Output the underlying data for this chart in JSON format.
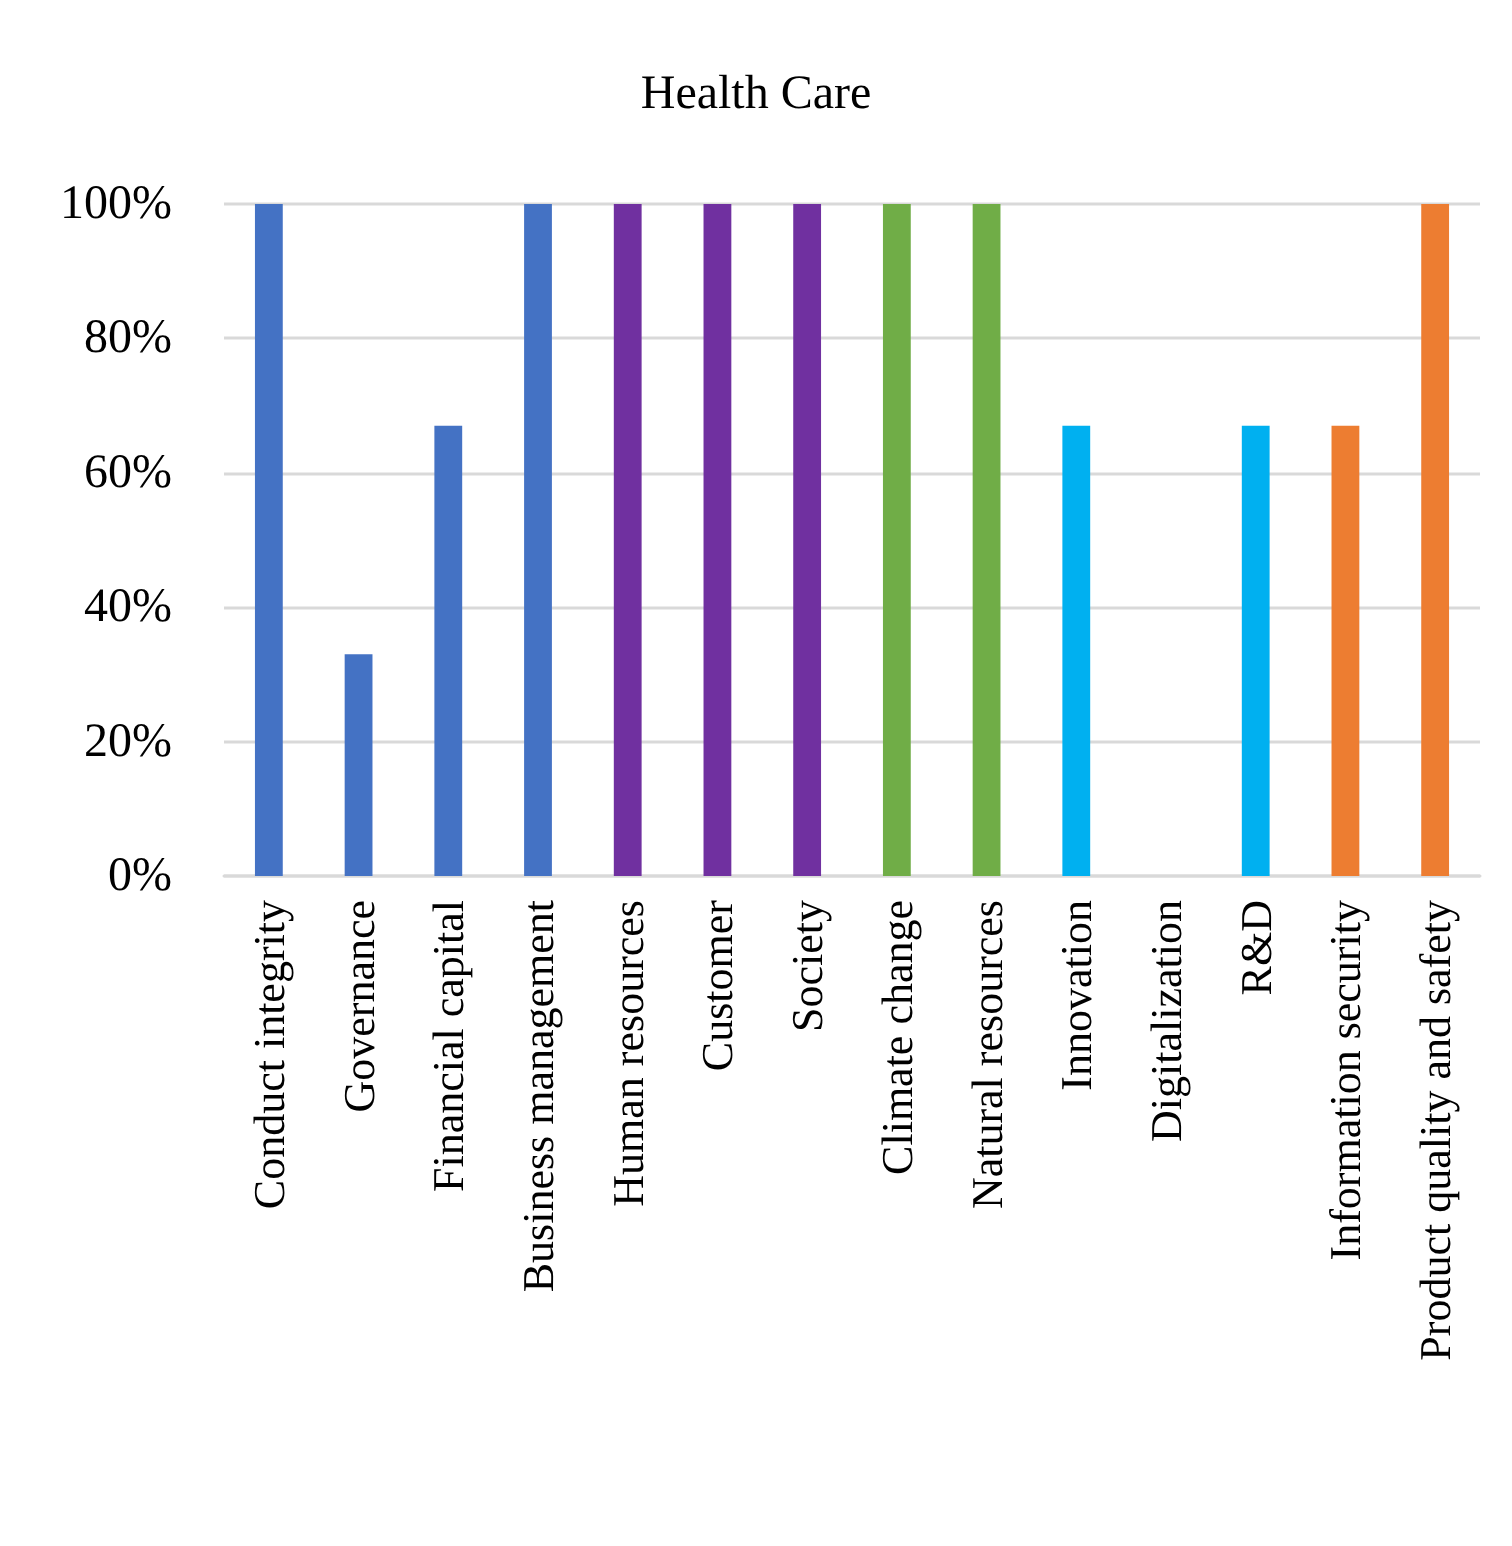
{
  "chart_data": {
    "type": "bar",
    "title": "Health Care",
    "categories": [
      "Conduct integrity",
      "Governance",
      "Financial capital",
      "Business management",
      "Human resources",
      "Customer",
      "Society",
      "Climate change",
      "Natural resources",
      "Innovation",
      "Digitalization",
      "R&D",
      "Information security",
      "Product quality and safety"
    ],
    "values": [
      100,
      33,
      67,
      100,
      100,
      100,
      100,
      100,
      100,
      67,
      0,
      67,
      67,
      100
    ],
    "colors": [
      "#4472c4",
      "#4472c4",
      "#4472c4",
      "#4472c4",
      "#7030a0",
      "#7030a0",
      "#7030a0",
      "#70ad47",
      "#70ad47",
      "#00b0f0",
      "#00b0f0",
      "#00b0f0",
      "#ed7d31",
      "#ed7d31"
    ],
    "ylim": [
      0,
      100
    ],
    "yticks": [
      {
        "value": 0,
        "label": "0%"
      },
      {
        "value": 20,
        "label": "20%"
      },
      {
        "value": 40,
        "label": "40%"
      },
      {
        "value": 60,
        "label": "60%"
      },
      {
        "value": 80,
        "label": "80%"
      },
      {
        "value": 100,
        "label": "100%"
      }
    ],
    "grid": "y"
  }
}
